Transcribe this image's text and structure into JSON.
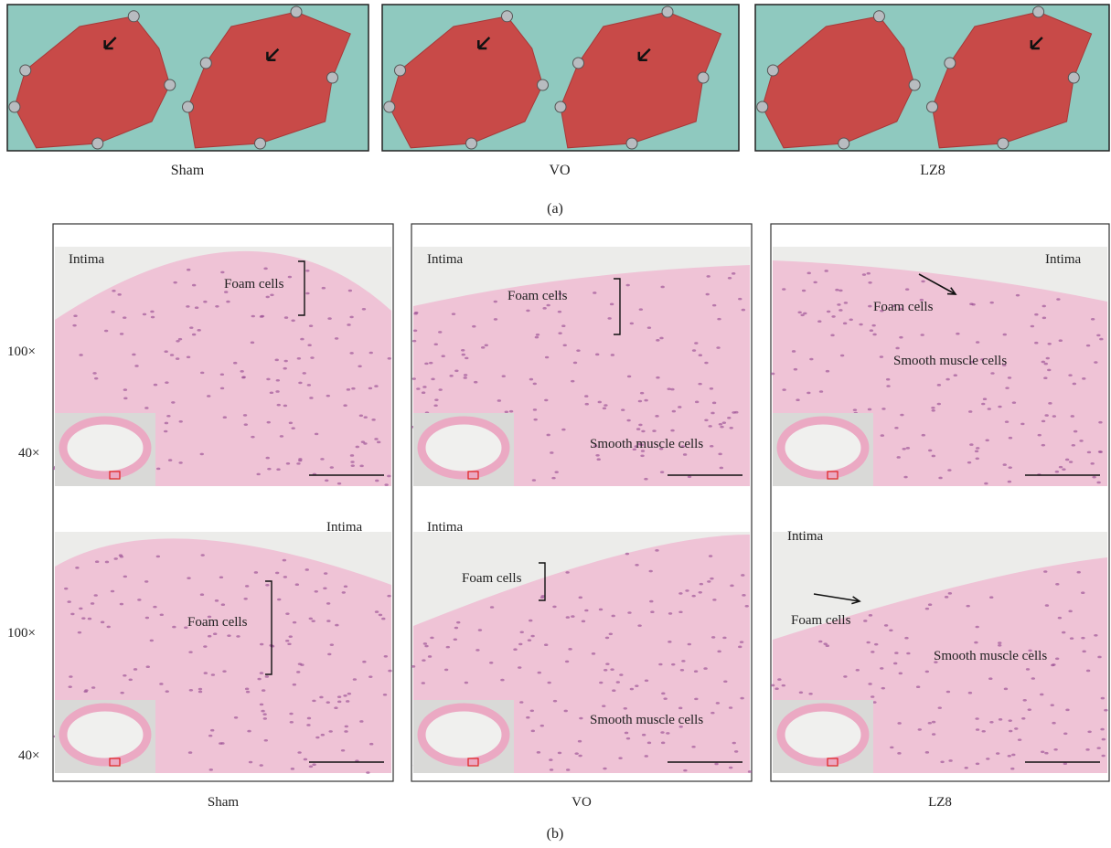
{
  "panel_a": {
    "images": [
      {
        "label": "Sham"
      },
      {
        "label": "VO"
      },
      {
        "label": "LZ8"
      }
    ],
    "caption": "(a)"
  },
  "panel_b": {
    "row_labels": [
      {
        "magnification": "100×",
        "inset": "40×"
      },
      {
        "magnification": "100×",
        "inset": "40×"
      }
    ],
    "columns": [
      {
        "label": "Sham",
        "images": [
          {
            "annotations": [
              "Intima",
              "Foam cells"
            ]
          },
          {
            "annotations": [
              "Intima",
              "Foam cells"
            ]
          }
        ]
      },
      {
        "label": "VO",
        "images": [
          {
            "annotations": [
              "Intima",
              "Foam cells",
              "Smooth muscle cells"
            ]
          },
          {
            "annotations": [
              "Intima",
              "Foam cells",
              "Smooth muscle cells"
            ]
          }
        ]
      },
      {
        "label": "LZ8",
        "images": [
          {
            "annotations": [
              "Intima",
              "Foam cells",
              "Smooth muscle cells"
            ]
          },
          {
            "annotations": [
              "Intima",
              "Foam cells",
              "Smooth muscle cells"
            ]
          }
        ]
      }
    ],
    "caption": "(b)"
  }
}
